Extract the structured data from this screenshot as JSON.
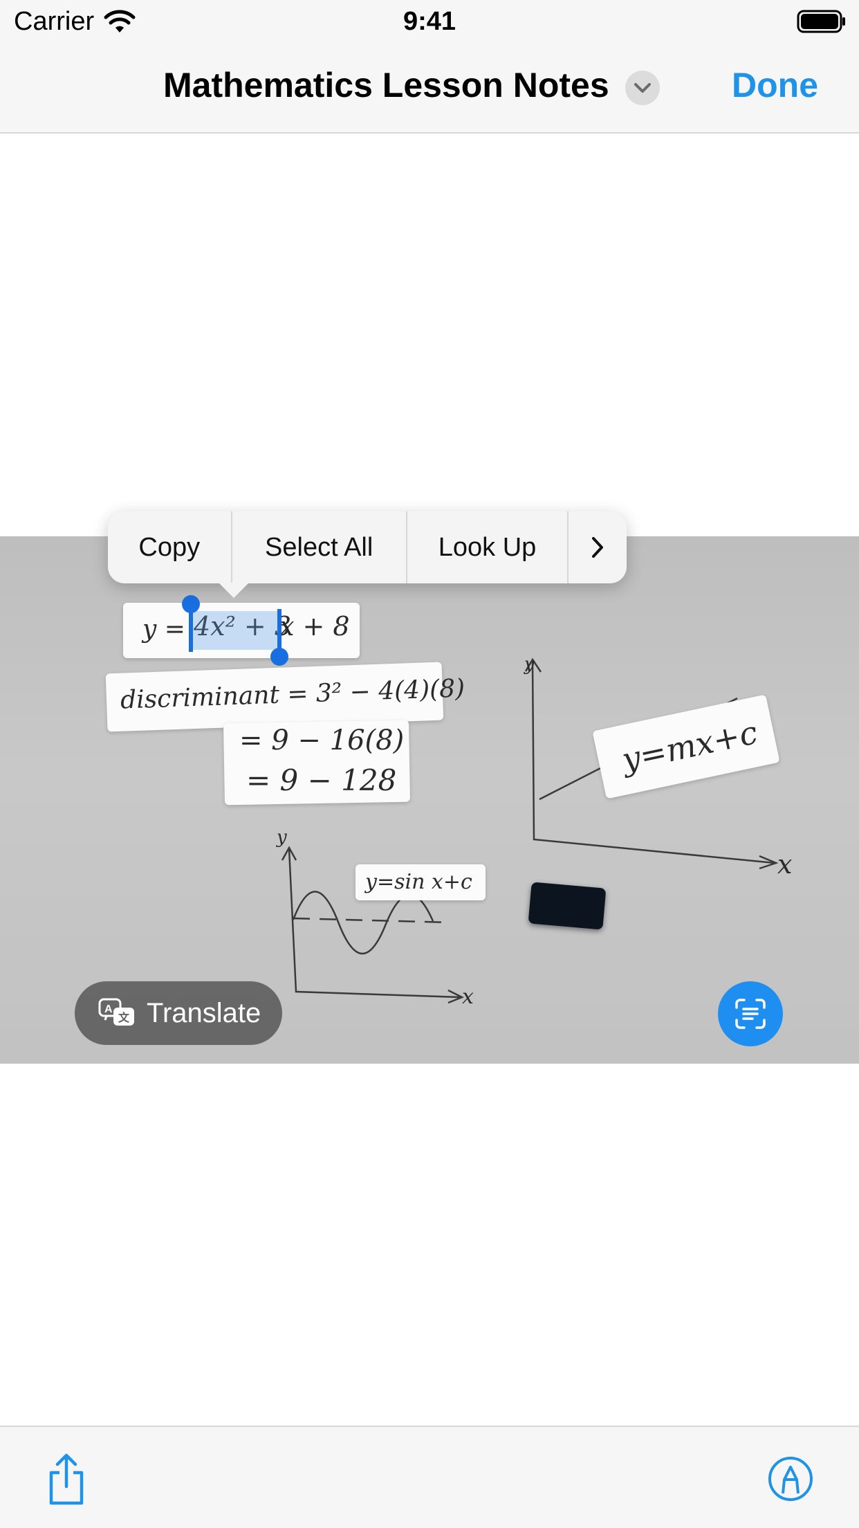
{
  "status_bar": {
    "carrier": "Carrier",
    "time": "9:41",
    "icons": [
      "wifi-icon",
      "battery-icon"
    ]
  },
  "nav": {
    "title": "Mathematics Lesson Notes",
    "title_menu_icon": "chevron-down-icon",
    "done_label": "Done"
  },
  "colors": {
    "accent": "#1e93e8",
    "selection": "#1a6fe0",
    "live_text_button": "#1e8ef0"
  },
  "edit_menu": {
    "items": [
      "Copy",
      "Select All",
      "Look Up"
    ],
    "more_icon": "chevron-right-icon"
  },
  "photo": {
    "notes": {
      "equation_prefix": "y =",
      "equation_selected": "4x² + 3",
      "equation_suffix": "x + 8",
      "discriminant_line1": "discriminant = 3² − 4(4)(8)",
      "discriminant_line2": "= 9 − 16(8)",
      "discriminant_line3": "= 9 − 128",
      "line_label": "y=mx+c",
      "sine_label": "y=sin x+c",
      "axis_y": "y",
      "axis_x": "x"
    }
  },
  "translate": {
    "label": "Translate",
    "icon": "translate-icon"
  },
  "live_text": {
    "icon": "live-text-icon"
  },
  "toolbar": {
    "share_icon": "share-icon",
    "markup_icon": "markup-icon"
  }
}
